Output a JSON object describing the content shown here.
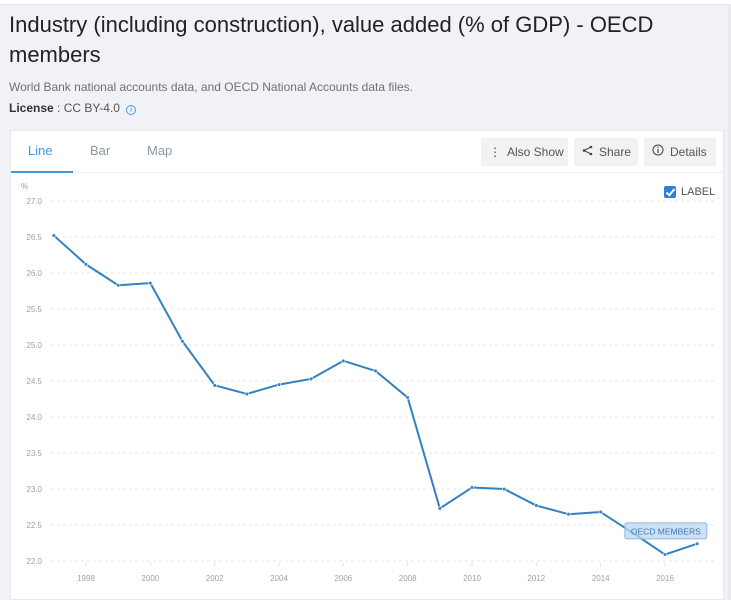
{
  "page": {
    "title": "Industry (including construction), value added (% of GDP) - OECD members",
    "subtitle": "World Bank national accounts data, and OECD National Accounts data files.",
    "license_label": "License",
    "license_value": " : CC BY-4.0"
  },
  "tabs": [
    {
      "label": "Line",
      "active": true
    },
    {
      "label": "Bar",
      "active": false
    },
    {
      "label": "Map",
      "active": false
    }
  ],
  "toolbar": {
    "also_show": "Also Show",
    "share": "Share",
    "details": "Details"
  },
  "label_toggle": {
    "label": "LABEL",
    "checked": true
  },
  "chart_data": {
    "type": "line",
    "title": "Industry (including construction), value added (% of GDP) - OECD members",
    "ylabel": "%",
    "xlabel": "",
    "ylim": [
      22.0,
      27.0
    ],
    "xlim": [
      1997,
      2017
    ],
    "yticks": [
      "22.0",
      "22.5",
      "23.0",
      "23.5",
      "24.0",
      "24.5",
      "25.0",
      "25.5",
      "26.0",
      "26.5",
      "27.0"
    ],
    "xticks": [
      "1998",
      "2000",
      "2002",
      "2004",
      "2006",
      "2008",
      "2010",
      "2012",
      "2014",
      "2016"
    ],
    "grid": true,
    "series": [
      {
        "name": "OECD MEMBERS",
        "color": "#3481c2",
        "x": [
          1997,
          1998,
          1999,
          2000,
          2001,
          2002,
          2003,
          2004,
          2005,
          2006,
          2007,
          2008,
          2009,
          2010,
          2011,
          2012,
          2013,
          2014,
          2015,
          2016,
          2017
        ],
        "values": [
          26.52,
          26.12,
          25.83,
          25.86,
          25.05,
          24.44,
          24.32,
          24.45,
          24.53,
          24.78,
          24.64,
          24.27,
          22.73,
          23.02,
          23.0,
          22.77,
          22.65,
          22.68,
          22.39,
          22.09,
          22.24
        ]
      }
    ],
    "series_label": "OECD MEMBERS"
  }
}
